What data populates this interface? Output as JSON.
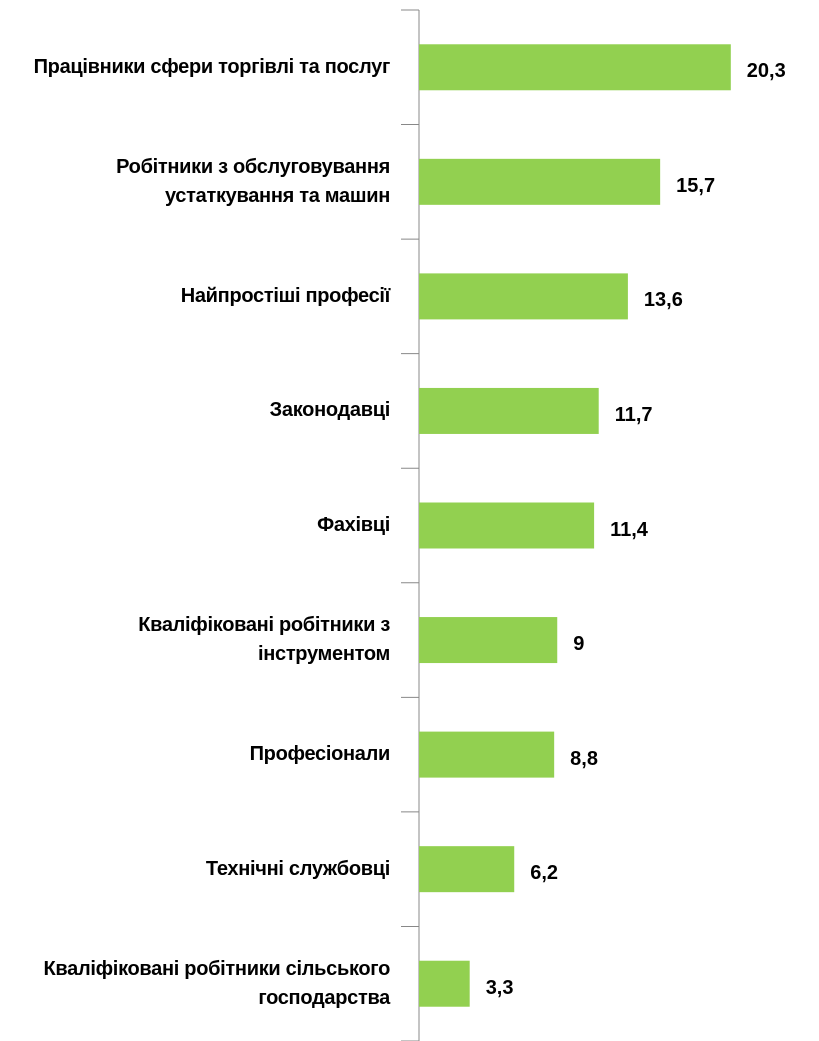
{
  "chart_data": {
    "type": "bar",
    "orientation": "horizontal",
    "categories": [
      "Працівники сфери торгівлі та послуг",
      "Робітники з обслуговування устаткування та машин",
      "Найпростіші професії",
      "Законодавці",
      "Фахівці",
      "Кваліфіковані робітники з інструментом",
      "Професіонали",
      "Технічні службовці",
      "Кваліфіковані робітники сільського господарства"
    ],
    "values": [
      20.3,
      15.7,
      13.6,
      11.7,
      11.4,
      9,
      8.8,
      6.2,
      3.3
    ],
    "value_labels": [
      "20,3",
      "15,7",
      "13,6",
      "11,7",
      "11,4",
      "9",
      "8,8",
      "6,2",
      "3,3"
    ],
    "color": "#92d050",
    "xlim": [
      0,
      25
    ]
  }
}
